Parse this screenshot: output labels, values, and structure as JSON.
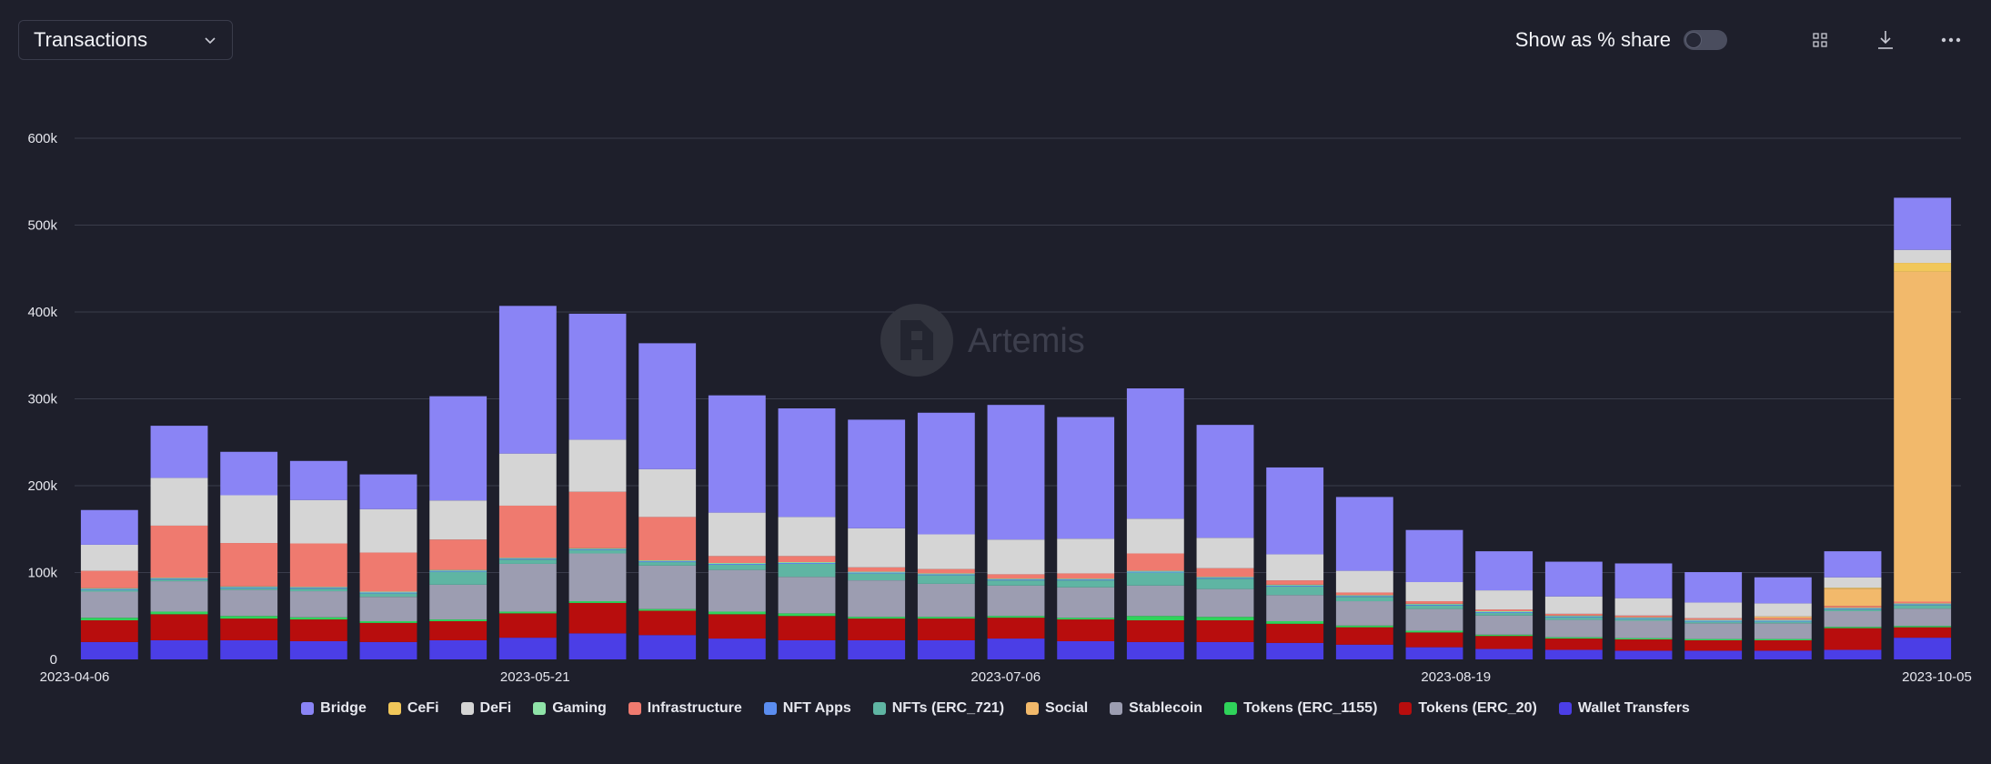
{
  "header": {
    "metric_label": "Transactions",
    "share_toggle_label": "Show as % share",
    "share_toggle_on": false
  },
  "icons": {
    "dropdown": "chevron-down-icon",
    "grid": "grid-icon",
    "download": "download-icon",
    "more": "more-horizontal-icon"
  },
  "watermark": "Artemis",
  "chart_data": {
    "type": "bar",
    "stacked": true,
    "title": "",
    "xlabel": "",
    "ylabel": "",
    "ylim": [
      0,
      600000
    ],
    "y_ticks": [
      "0",
      "100k",
      "200k",
      "300k",
      "400k",
      "500k",
      "600k"
    ],
    "x_start": "2023-04-06",
    "x_end": "2023-10-07",
    "x_ticks": [
      "2023-04-06",
      "2023-05-21",
      "2023-07-06",
      "2023-08-19",
      "2023-10-05"
    ],
    "grid": true,
    "legend_position": "bottom",
    "categories": [
      "2023-04-06",
      "2023-04-13",
      "2023-04-20",
      "2023-04-27",
      "2023-05-04",
      "2023-05-11",
      "2023-05-18",
      "2023-05-25",
      "2023-06-01",
      "2023-06-08",
      "2023-06-15",
      "2023-06-22",
      "2023-06-29",
      "2023-07-06",
      "2023-07-13",
      "2023-07-20",
      "2023-07-27",
      "2023-08-03",
      "2023-08-10",
      "2023-08-17",
      "2023-08-24",
      "2023-08-31",
      "2023-09-07",
      "2023-09-14",
      "2023-09-21",
      "2023-09-28",
      "2023-10-05"
    ],
    "series": [
      {
        "name": "Wallet Transfers",
        "color": "#4b3ee6",
        "values": [
          20000,
          22000,
          22000,
          21000,
          20000,
          22000,
          25000,
          30000,
          28000,
          24000,
          22000,
          22000,
          22000,
          24000,
          21000,
          20000,
          20000,
          19000,
          17000,
          14000,
          12000,
          11000,
          10000,
          10000,
          10000,
          11000,
          25000
        ]
      },
      {
        "name": "Tokens (ERC_20)",
        "color": "#b80d0d",
        "values": [
          25000,
          30000,
          25000,
          25000,
          22000,
          22000,
          28000,
          35000,
          28000,
          28000,
          28000,
          25000,
          25000,
          24000,
          25000,
          25000,
          25000,
          22000,
          20000,
          17000,
          15000,
          13000,
          13000,
          12000,
          12000,
          25000,
          12000
        ]
      },
      {
        "name": "Tokens (ERC_1155)",
        "color": "#2fd35a",
        "values": [
          3000,
          3000,
          3000,
          2500,
          2000,
          2000,
          2000,
          2000,
          2000,
          3000,
          3000,
          2000,
          2000,
          2000,
          2000,
          5000,
          4000,
          3000,
          2000,
          2000,
          1500,
          1500,
          1500,
          1500,
          1500,
          1500,
          1500
        ]
      },
      {
        "name": "Stablecoin",
        "color": "#9c9db1",
        "values": [
          30000,
          35000,
          30000,
          30000,
          28000,
          40000,
          55000,
          55000,
          50000,
          48000,
          42000,
          42000,
          38000,
          35000,
          35000,
          35000,
          32000,
          30000,
          28000,
          25000,
          22000,
          20000,
          20000,
          18000,
          18000,
          18000,
          20000
        ]
      },
      {
        "name": "NFTs (ERC_721)",
        "color": "#5fb5a3",
        "values": [
          2000,
          2000,
          2000,
          3000,
          4000,
          15000,
          5000,
          4000,
          4000,
          6000,
          15000,
          8000,
          10000,
          6000,
          8000,
          15000,
          12000,
          10000,
          5000,
          4000,
          3000,
          3000,
          2000,
          2000,
          2000,
          2000,
          4000
        ]
      },
      {
        "name": "NFT Apps",
        "color": "#5b8df0",
        "values": [
          1000,
          1000,
          1000,
          1000,
          1000,
          1000,
          1000,
          1000,
          1000,
          1000,
          1000,
          1000,
          1000,
          1000,
          1000,
          1000,
          1000,
          1000,
          1000,
          1000,
          1000,
          1000,
          1000,
          1000,
          1000,
          1000,
          1000
        ]
      },
      {
        "name": "Gaming",
        "color": "#8fe3a8",
        "values": [
          1000,
          1000,
          1000,
          1000,
          1000,
          1000,
          1000,
          1000,
          1000,
          1000,
          1000,
          1000,
          1000,
          1000,
          1000,
          1000,
          1000,
          1000,
          1000,
          1000,
          1000,
          1000,
          1000,
          1000,
          1000,
          1000,
          1000
        ]
      },
      {
        "name": "Infrastructure",
        "color": "#ef7a6f",
        "values": [
          20000,
          60000,
          50000,
          50000,
          45000,
          35000,
          60000,
          65000,
          50000,
          8000,
          7000,
          5000,
          5000,
          5000,
          6000,
          20000,
          10000,
          5000,
          3000,
          3000,
          2000,
          2000,
          2000,
          2000,
          2000,
          2000,
          2000
        ]
      },
      {
        "name": "Social",
        "color": "#f2b96b",
        "values": [
          0,
          0,
          0,
          0,
          0,
          0,
          0,
          0,
          0,
          0,
          0,
          0,
          0,
          0,
          0,
          0,
          0,
          0,
          0,
          0,
          0,
          0,
          0,
          0,
          2000,
          20000,
          380000
        ]
      },
      {
        "name": "CeFi",
        "color": "#f1c75a",
        "values": [
          0,
          0,
          0,
          0,
          0,
          0,
          0,
          0,
          0,
          0,
          0,
          0,
          0,
          0,
          0,
          0,
          0,
          0,
          0,
          0,
          0,
          0,
          0,
          0,
          0,
          1000,
          10000
        ]
      },
      {
        "name": "DeFi",
        "color": "#d5d5d5",
        "values": [
          30000,
          55000,
          55000,
          50000,
          50000,
          45000,
          60000,
          60000,
          55000,
          50000,
          45000,
          45000,
          40000,
          40000,
          40000,
          40000,
          35000,
          30000,
          25000,
          22000,
          22000,
          20000,
          20000,
          18000,
          15000,
          12000,
          15000
        ]
      },
      {
        "name": "Bridge",
        "color": "#8a84f5",
        "values": [
          40000,
          60000,
          50000,
          45000,
          40000,
          120000,
          170000,
          145000,
          145000,
          135000,
          125000,
          125000,
          140000,
          155000,
          140000,
          150000,
          130000,
          100000,
          85000,
          60000,
          45000,
          40000,
          40000,
          35000,
          30000,
          30000,
          60000
        ]
      }
    ]
  }
}
